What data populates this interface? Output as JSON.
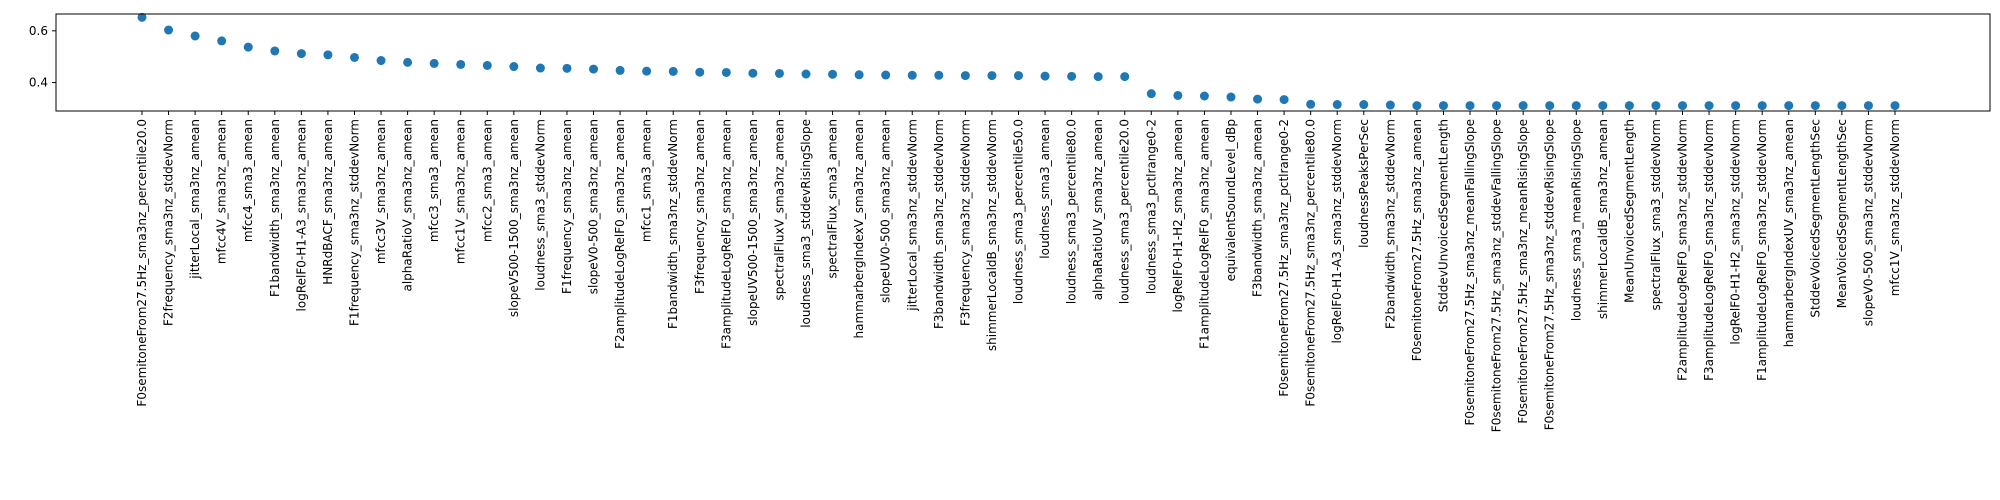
{
  "chart_data": {
    "type": "scatter",
    "title": "",
    "xlabel": "",
    "ylabel": "",
    "ylim": [
      0.29,
      0.665
    ],
    "yticks": [
      0.4,
      0.6
    ],
    "ytick_labels": [
      "0.4",
      "0.6"
    ],
    "grid": false,
    "marker_color": "#1f77b4",
    "categories": [
      "F0semitoneFrom27.5Hz_sma3nz_percentile20.0",
      "F2frequency_sma3nz_stddevNorm",
      "jitterLocal_sma3nz_amean",
      "mfcc4V_sma3nz_amean",
      "mfcc4_sma3_amean",
      "F1bandwidth_sma3nz_amean",
      "logRelF0-H1-A3_sma3nz_amean",
      "HNRdBACF_sma3nz_amean",
      "F1frequency_sma3nz_stddevNorm",
      "mfcc3V_sma3nz_amean",
      "alphaRatioV_sma3nz_amean",
      "mfcc3_sma3_amean",
      "mfcc1V_sma3nz_amean",
      "mfcc2_sma3_amean",
      "slopeV500-1500_sma3nz_amean",
      "loudness_sma3_stddevNorm",
      "F1frequency_sma3nz_amean",
      "slopeV0-500_sma3nz_amean",
      "F2amplitudeLogRelF0_sma3nz_amean",
      "mfcc1_sma3_amean",
      "F1bandwidth_sma3nz_stddevNorm",
      "F3frequency_sma3nz_amean",
      "F3amplitudeLogRelF0_sma3nz_amean",
      "slopeUV500-1500_sma3nz_amean",
      "spectralFluxV_sma3nz_amean",
      "loudness_sma3_stddevRisingSlope",
      "spectralFlux_sma3_amean",
      "hammarbergIndexV_sma3nz_amean",
      "slopeUV0-500_sma3nz_amean",
      "jitterLocal_sma3nz_stddevNorm",
      "F3bandwidth_sma3nz_stddevNorm",
      "F3frequency_sma3nz_stddevNorm",
      "shimmerLocaldB_sma3nz_stddevNorm",
      "loudness_sma3_percentile50.0",
      "loudness_sma3_amean",
      "loudness_sma3_percentile80.0",
      "alphaRatioUV_sma3nz_amean",
      "loudness_sma3_percentile20.0",
      "loudness_sma3_pctlrange0-2",
      "logRelF0-H1-H2_sma3nz_amean",
      "F1amplitudeLogRelF0_sma3nz_amean",
      "equivalentSoundLevel_dBp",
      "F3bandwidth_sma3nz_amean",
      "F0semitoneFrom27.5Hz_sma3nz_pctlrange0-2",
      "F0semitoneFrom27.5Hz_sma3nz_percentile80.0",
      "logRelF0-H1-A3_sma3nz_stddevNorm",
      "loudnessPeaksPerSec",
      "F2bandwidth_sma3nz_stddevNorm",
      "F0semitoneFrom27.5Hz_sma3nz_amean",
      "StddevUnvoicedSegmentLength",
      "F0semitoneFrom27.5Hz_sma3nz_meanFallingSlope",
      "F0semitoneFrom27.5Hz_sma3nz_stddevFallingSlope",
      "F0semitoneFrom27.5Hz_sma3nz_meanRisingSlope",
      "F0semitoneFrom27.5Hz_sma3nz_stddevRisingSlope",
      "loudness_sma3_meanRisingSlope",
      "shimmerLocaldB_sma3nz_amean",
      "MeanUnvoicedSegmentLength",
      "spectralFlux_sma3_stddevNorm",
      "F2amplitudeLogRelF0_sma3nz_stddevNorm",
      "F3amplitudeLogRelF0_sma3nz_stddevNorm",
      "logRelF0-H1-H2_sma3nz_stddevNorm",
      "F1amplitudeLogRelF0_sma3nz_stddevNorm",
      "hammarbergIndexUV_sma3nz_amean",
      "StddevVoicedSegmentLengthSec",
      "MeanVoicedSegmentLengthSec",
      "slopeV0-500_sma3nz_stddevNorm",
      "mfcc1V_sma3nz_stddevNorm"
    ],
    "values": [
      0.652,
      0.603,
      0.58,
      0.561,
      0.537,
      0.522,
      0.512,
      0.507,
      0.497,
      0.485,
      0.478,
      0.474,
      0.47,
      0.466,
      0.462,
      0.456,
      0.455,
      0.452,
      0.447,
      0.444,
      0.443,
      0.44,
      0.439,
      0.436,
      0.435,
      0.433,
      0.432,
      0.43,
      0.429,
      0.428,
      0.428,
      0.427,
      0.427,
      0.427,
      0.425,
      0.424,
      0.423,
      0.423,
      0.357,
      0.35,
      0.348,
      0.344,
      0.336,
      0.334,
      0.316,
      0.315,
      0.315,
      0.313,
      0.311,
      0.311,
      0.311,
      0.311,
      0.311,
      0.311,
      0.311,
      0.311,
      0.311,
      0.311,
      0.311,
      0.311,
      0.311,
      0.311,
      0.311,
      0.311,
      0.311,
      0.311,
      0.311
    ]
  }
}
